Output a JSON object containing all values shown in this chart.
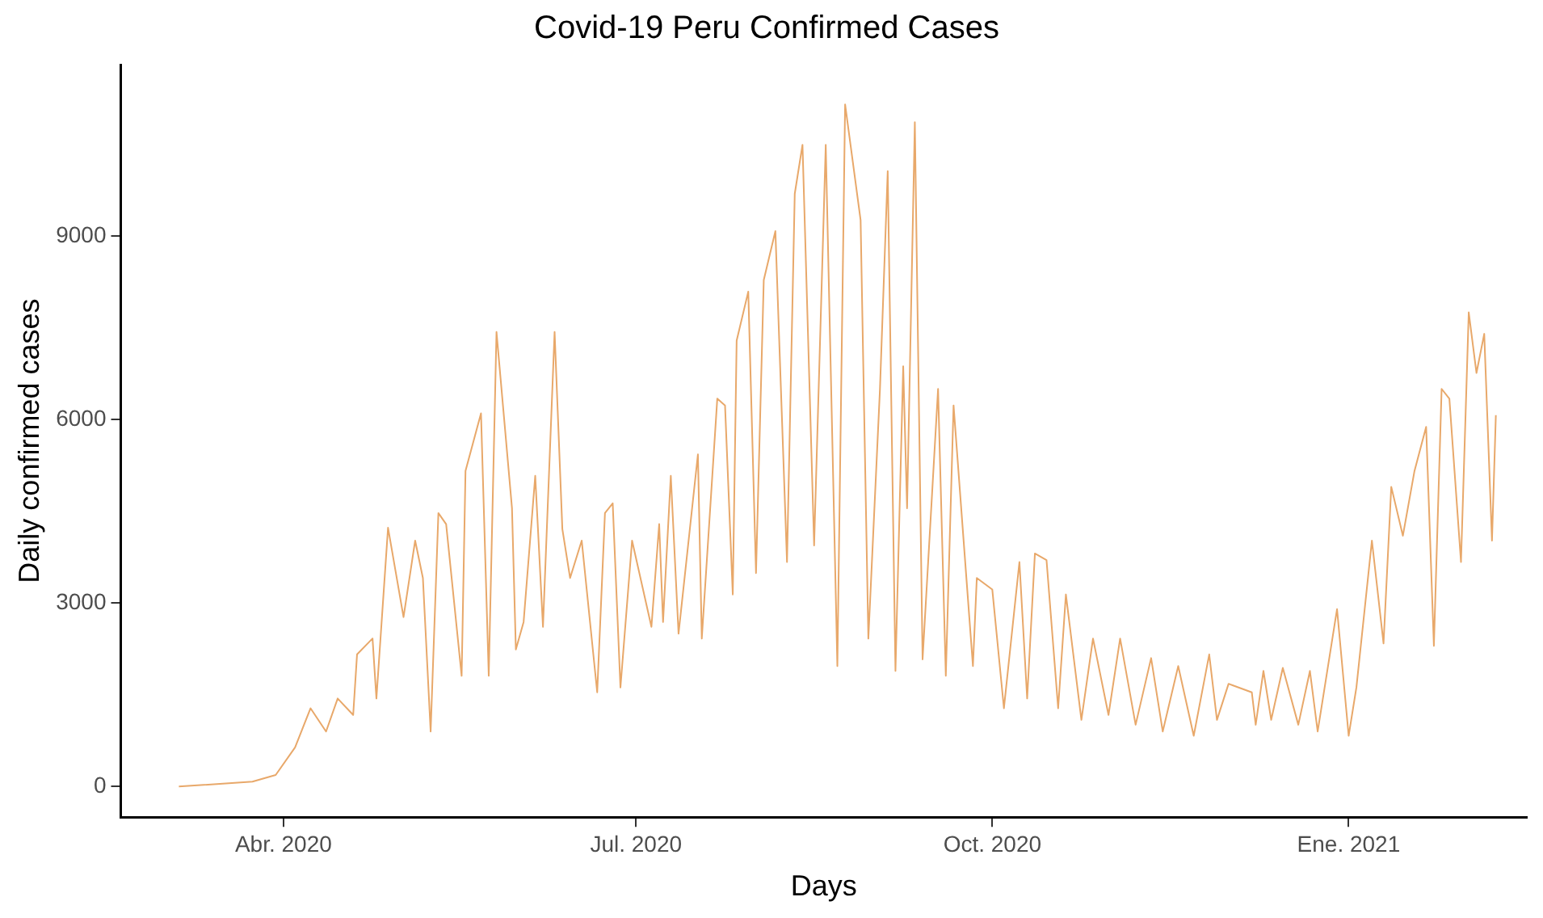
{
  "chart_data": {
    "type": "line",
    "title": "Covid-19 Peru Confirmed Cases",
    "xlabel": "Days",
    "ylabel": "Daily confirmed cases",
    "xlim": [
      "2020-02-19",
      "2021-02-16"
    ],
    "xticks": [
      {
        "value": "2020-04-01",
        "label": "Abr. 2020"
      },
      {
        "value": "2020-07-01",
        "label": "Jul. 2020"
      },
      {
        "value": "2020-10-01",
        "label": "Oct. 2020"
      },
      {
        "value": "2021-01-01",
        "label": "Ene. 2021"
      }
    ],
    "ylim": [
      -500,
      11800
    ],
    "yticks": [
      0,
      3000,
      6000,
      9000
    ],
    "grid": false,
    "legend": false,
    "marker": "none",
    "line_style": "solid",
    "series": [
      {
        "color": "#e8a86a",
        "x": [
          "2020-03-05",
          "2020-03-24",
          "2020-03-30",
          "2020-04-04",
          "2020-04-08",
          "2020-04-12",
          "2020-04-15",
          "2020-04-19",
          "2020-04-20",
          "2020-04-24",
          "2020-04-25",
          "2020-04-28",
          "2020-05-02",
          "2020-05-05",
          "2020-05-07",
          "2020-05-09",
          "2020-05-11",
          "2020-05-13",
          "2020-05-17",
          "2020-05-18",
          "2020-05-22",
          "2020-05-24",
          "2020-05-26",
          "2020-05-30",
          "2020-05-31",
          "2020-06-02",
          "2020-06-05",
          "2020-06-07",
          "2020-06-10",
          "2020-06-12",
          "2020-06-14",
          "2020-06-17",
          "2020-06-21",
          "2020-06-23",
          "2020-06-25",
          "2020-06-27",
          "2020-06-30",
          "2020-07-05",
          "2020-07-07",
          "2020-07-08",
          "2020-07-10",
          "2020-07-12",
          "2020-07-17",
          "2020-07-18",
          "2020-07-22",
          "2020-07-24",
          "2020-07-26",
          "2020-07-27",
          "2020-07-30",
          "2020-08-01",
          "2020-08-03",
          "2020-08-06",
          "2020-08-09",
          "2020-08-11",
          "2020-08-13",
          "2020-08-16",
          "2020-08-19",
          "2020-08-22",
          "2020-08-24",
          "2020-08-28",
          "2020-08-30",
          "2020-09-02",
          "2020-09-04",
          "2020-09-06",
          "2020-09-08",
          "2020-09-09",
          "2020-09-11",
          "2020-09-13",
          "2020-09-17",
          "2020-09-19",
          "2020-09-21",
          "2020-09-26",
          "2020-09-27",
          "2020-10-01",
          "2020-10-04",
          "2020-10-08",
          "2020-10-10",
          "2020-10-12",
          "2020-10-15",
          "2020-10-18",
          "2020-10-20",
          "2020-10-24",
          "2020-10-27",
          "2020-10-31",
          "2020-11-03",
          "2020-11-07",
          "2020-11-11",
          "2020-11-14",
          "2020-11-18",
          "2020-11-22",
          "2020-11-26",
          "2020-11-28",
          "2020-12-01",
          "2020-12-07",
          "2020-12-08",
          "2020-12-10",
          "2020-12-12",
          "2020-12-15",
          "2020-12-19",
          "2020-12-22",
          "2020-12-24",
          "2020-12-29",
          "2021-01-01",
          "2021-01-03",
          "2021-01-07",
          "2021-01-10",
          "2021-01-12",
          "2021-01-15",
          "2021-01-18",
          "2021-01-21",
          "2021-01-23",
          "2021-01-25",
          "2021-01-27",
          "2021-01-30",
          "2021-02-01",
          "2021-02-03",
          "2021-02-05",
          "2021-02-07",
          "2021-02-08"
        ],
        "values": [
          0,
          80,
          190,
          640,
          1280,
          900,
          1440,
          1170,
          2160,
          2420,
          1440,
          4230,
          2770,
          4020,
          3410,
          900,
          4470,
          4290,
          1810,
          5160,
          6100,
          1810,
          7430,
          4550,
          2240,
          2690,
          5080,
          2610,
          7430,
          4210,
          3410,
          4020,
          1540,
          4470,
          4630,
          1620,
          4020,
          2610,
          4290,
          2690,
          5080,
          2500,
          5430,
          2420,
          6340,
          6230,
          3140,
          7290,
          8090,
          3490,
          8280,
          9080,
          3670,
          9690,
          10490,
          3940,
          10490,
          1970,
          11150,
          9260,
          2420,
          6500,
          10060,
          1890,
          6870,
          4550,
          10860,
          2080,
          6500,
          1810,
          6230,
          1970,
          3410,
          3220,
          1280,
          3670,
          1440,
          3810,
          3700,
          1280,
          3140,
          1090,
          2420,
          1170,
          2420,
          1010,
          2100,
          900,
          1970,
          830,
          2160,
          1090,
          1680,
          1540,
          1010,
          1890,
          1090,
          1940,
          1010,
          1890,
          900,
          2900,
          830,
          1620,
          4020,
          2340,
          4900,
          4100,
          5160,
          5880,
          2300,
          6500,
          6340,
          3670,
          7750,
          6760,
          7400,
          4020,
          6070
        ]
      }
    ]
  }
}
